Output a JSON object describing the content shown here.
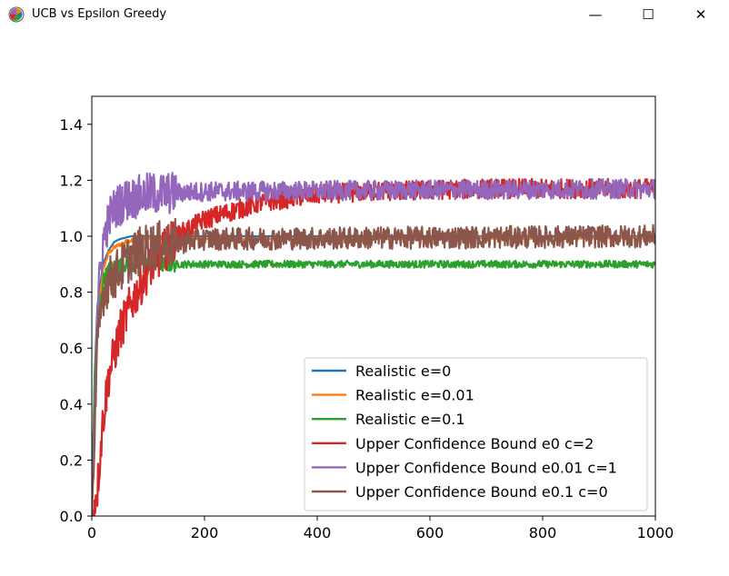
{
  "window": {
    "title": "UCB vs Epsilon Greedy",
    "minimize_glyph": "—",
    "maximize_glyph": "☐",
    "close_glyph": "✕",
    "icon": "matplotlib-icon"
  },
  "chart_data": {
    "type": "line",
    "title": "",
    "xlabel": "",
    "ylabel": "",
    "xlim": [
      0,
      1000
    ],
    "ylim": [
      0,
      1.5
    ],
    "xticks": [
      "0",
      "200",
      "400",
      "600",
      "800",
      "1000"
    ],
    "yticks": [
      "0.0",
      "0.2",
      "0.4",
      "0.6",
      "0.8",
      "1.0",
      "1.2",
      "1.4"
    ],
    "grid": false,
    "legend_position": "lower-right",
    "series": [
      {
        "name": "Realistic e=0",
        "color": "#1f77b4",
        "x": [
          0,
          5,
          10,
          20,
          30,
          40,
          50,
          70,
          100,
          1000
        ],
        "y": [
          0,
          0.5,
          0.75,
          0.9,
          0.95,
          0.98,
          0.99,
          1.0,
          1.0,
          1.0
        ],
        "noise": 0
      },
      {
        "name": "Realistic e=0.01",
        "color": "#ff7f0e",
        "x": [
          0,
          5,
          10,
          20,
          30,
          40,
          60,
          80,
          100,
          1000
        ],
        "y": [
          0,
          0.45,
          0.7,
          0.88,
          0.94,
          0.96,
          0.98,
          0.99,
          0.99,
          0.995
        ],
        "noise": 0.002
      },
      {
        "name": "Realistic e=0.1",
        "color": "#2ca02c",
        "x": [
          0,
          5,
          10,
          20,
          30,
          40,
          60,
          80,
          100,
          1000
        ],
        "y": [
          0,
          0.45,
          0.68,
          0.84,
          0.88,
          0.89,
          0.9,
          0.9,
          0.9,
          0.9
        ],
        "noise": 0.008
      },
      {
        "name": "Upper Confidence Bound e0 c=2",
        "color": "#d62728",
        "x": [
          0,
          10,
          20,
          30,
          50,
          70,
          100,
          150,
          200,
          300,
          400,
          500,
          700,
          1000
        ],
        "y": [
          0,
          0.1,
          0.35,
          0.5,
          0.66,
          0.76,
          0.88,
          1.0,
          1.06,
          1.12,
          1.15,
          1.16,
          1.17,
          1.17
        ],
        "noise": 0.022
      },
      {
        "name": "Upper Confidence Bound e0.01 c=1",
        "color": "#9467bd",
        "x": [
          0,
          10,
          20,
          30,
          40,
          60,
          100,
          200,
          1000
        ],
        "y": [
          0,
          0.75,
          0.98,
          1.06,
          1.1,
          1.13,
          1.15,
          1.16,
          1.17
        ],
        "noise": 0.022
      },
      {
        "name": "Upper Confidence Bound e0.1 c=0",
        "color": "#8c564b",
        "x": [
          0,
          10,
          20,
          30,
          50,
          70,
          100,
          200,
          1000
        ],
        "y": [
          0,
          0.6,
          0.8,
          0.84,
          0.88,
          0.93,
          0.96,
          0.99,
          1.0
        ],
        "noise": 0.025
      }
    ]
  }
}
